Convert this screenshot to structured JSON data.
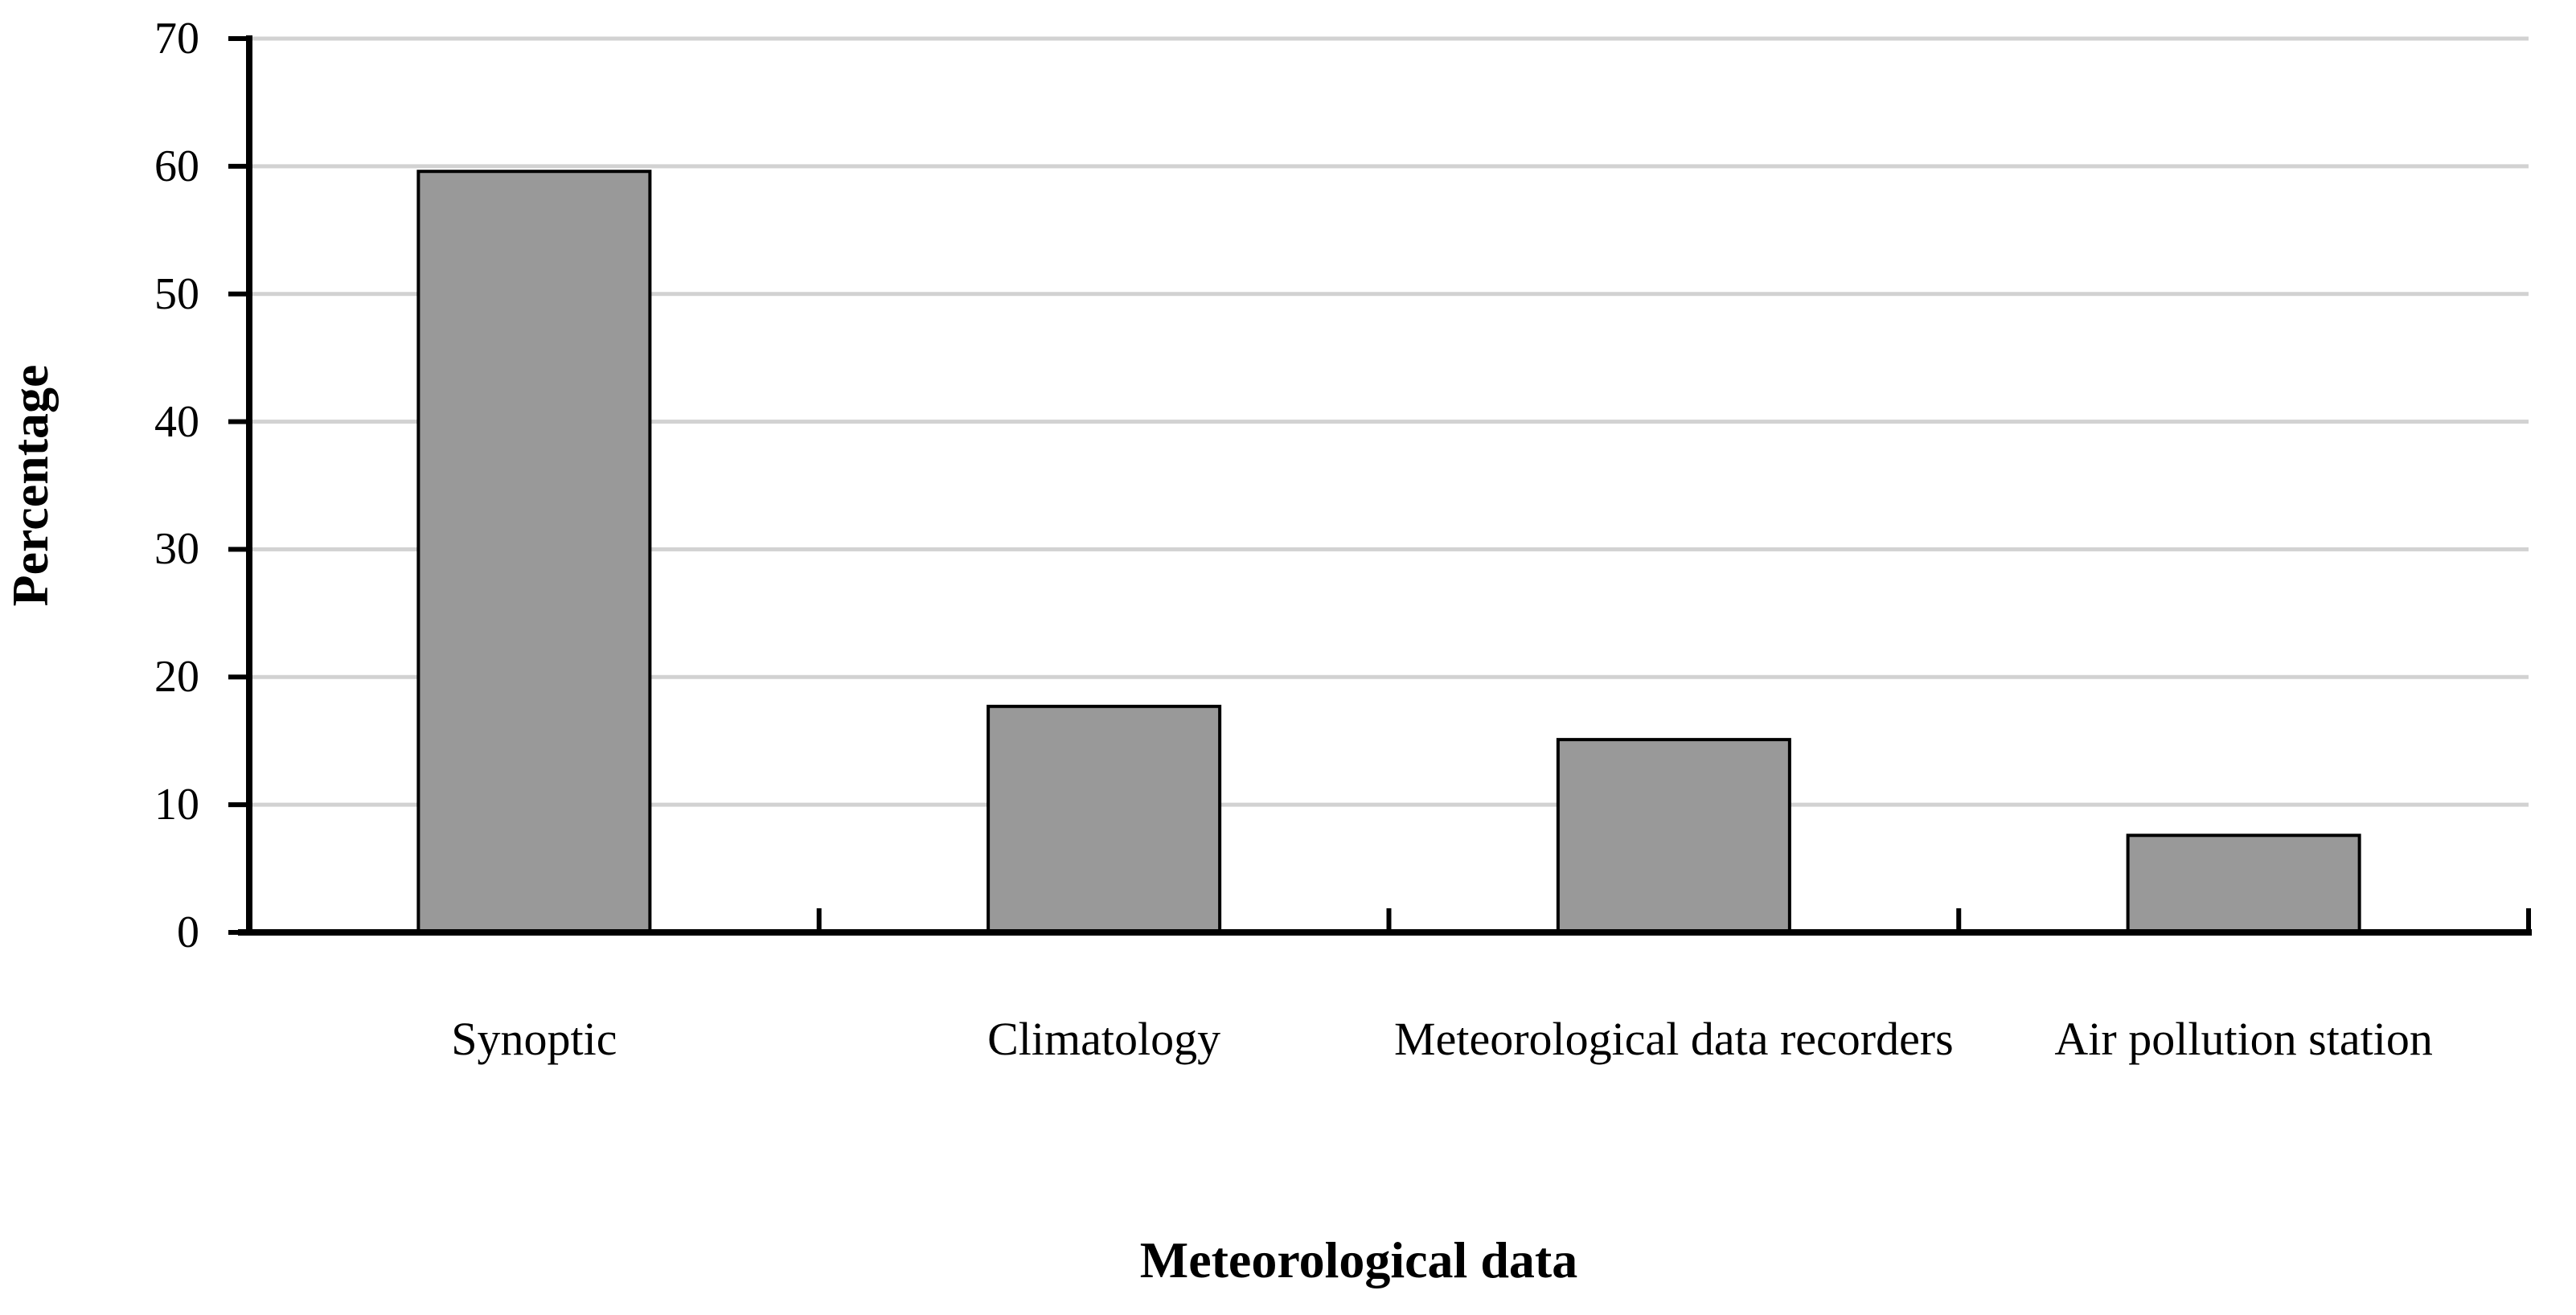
{
  "chart_data": {
    "type": "bar",
    "title": "",
    "categories": [
      "Synoptic",
      "Climatology",
      "Meteorological data recorders",
      "Air pollution station"
    ],
    "values": [
      59.6,
      17.7,
      15.1,
      7.6
    ],
    "xlabel": "Meteorological data",
    "ylabel": "Percentage",
    "ylim": [
      0,
      70
    ],
    "yticks": [
      0,
      10,
      20,
      30,
      40,
      50,
      60,
      70
    ],
    "grid": "horizontal",
    "legend": "none",
    "colors": {
      "bar_fill": "#999999",
      "bar_outline": "#000000",
      "gridline": "#d2d2d2",
      "axis": "#000000",
      "background": "#ffffff",
      "text": "#000000"
    }
  }
}
